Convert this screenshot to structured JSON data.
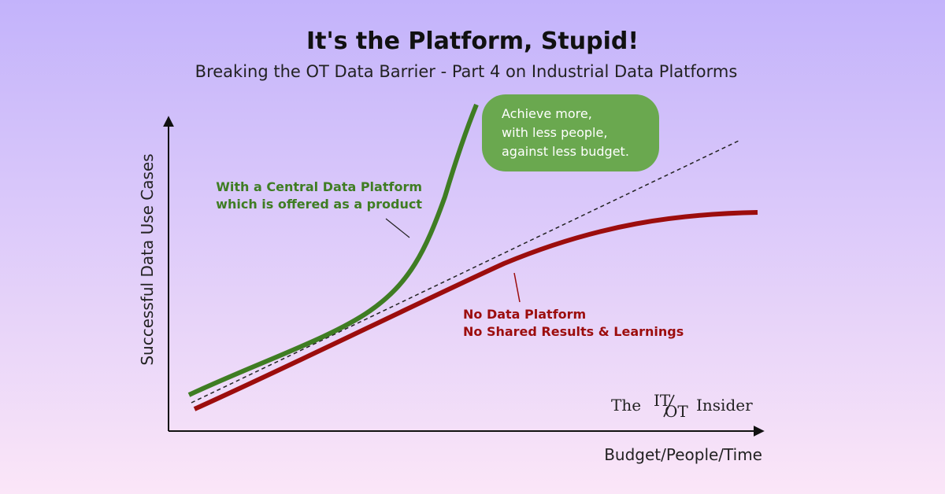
{
  "header": {
    "title": "It's the Platform, Stupid!",
    "subtitle": "Breaking the OT Data Barrier - Part 4 on Industrial Data Platforms"
  },
  "axes": {
    "y_label": "Successful Data Use Cases",
    "x_label": "Budget/People/Time"
  },
  "annotations": {
    "platform": [
      "With a Central Data Platform",
      "which is offered as a product"
    ],
    "no_platform": [
      "No Data Platform",
      "No Shared Results & Learnings"
    ],
    "callout": [
      "Achieve more,",
      "with less people,",
      "against less budget."
    ]
  },
  "logo": {
    "prefix": "The",
    "mark_top": "IT",
    "mark_bottom": "OT",
    "suffix": "Insider"
  }
}
